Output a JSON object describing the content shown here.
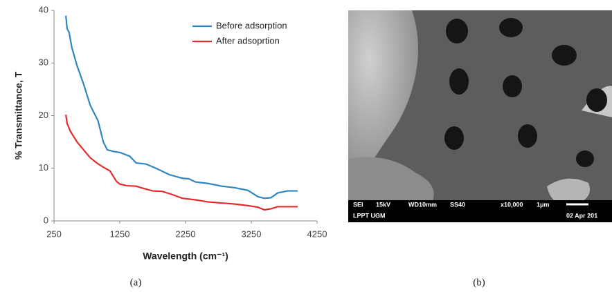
{
  "chart_data": {
    "type": "line",
    "xlabel": "Wavelength (cm⁻¹)",
    "ylabel": "% Transmittance, T",
    "xlim": [
      250,
      4250
    ],
    "xticks": [
      250,
      1250,
      2250,
      3250,
      4250
    ],
    "ylim": [
      0,
      40
    ],
    "yticks": [
      0,
      10,
      20,
      30,
      40
    ],
    "grid": false,
    "legend": "upper right",
    "series": [
      {
        "name": "Before adsorption",
        "color": "#2e86c1",
        "x": [
          430,
          450,
          480,
          520,
          600,
          700,
          800,
          880,
          920,
          960,
          1000,
          1060,
          1150,
          1250,
          1400,
          1500,
          1650,
          1800,
          2000,
          2200,
          2300,
          2400,
          2600,
          2800,
          3000,
          3200,
          3350,
          3450,
          3550,
          3650,
          3800,
          3955
        ],
        "values": [
          39,
          36.5,
          35.8,
          33,
          29.5,
          26,
          22,
          20,
          19,
          17,
          15,
          13.5,
          13.2,
          13,
          12.3,
          11,
          10.8,
          10,
          8.8,
          8.1,
          8,
          7.4,
          7.1,
          6.6,
          6.3,
          5.8,
          4.6,
          4.3,
          4.4,
          5.3,
          5.7,
          5.7
        ]
      },
      {
        "name": "After adsoprtion",
        "color": "#e32b2b",
        "x": [
          430,
          450,
          500,
          600,
          700,
          800,
          900,
          1000,
          1100,
          1200,
          1250,
          1350,
          1500,
          1600,
          1750,
          1900,
          2050,
          2200,
          2400,
          2600,
          2800,
          3000,
          3200,
          3350,
          3450,
          3550,
          3650,
          3800,
          3955
        ],
        "values": [
          20.2,
          18.5,
          17,
          15,
          13.5,
          12,
          11,
          10.2,
          9.5,
          7.5,
          7,
          6.7,
          6.6,
          6.2,
          5.7,
          5.6,
          5,
          4.3,
          4,
          3.6,
          3.4,
          3.2,
          2.9,
          2.6,
          2.1,
          2.3,
          2.7,
          2.7,
          2.7
        ]
      }
    ]
  },
  "captions": [
    "(a)",
    "(b)"
  ],
  "micrograph": {
    "labels": [
      "SEI",
      "15kV",
      "WD10mm",
      "SS40",
      "x10,000",
      "1μm",
      "LPPT UGM",
      "02 Apr 201"
    ]
  }
}
